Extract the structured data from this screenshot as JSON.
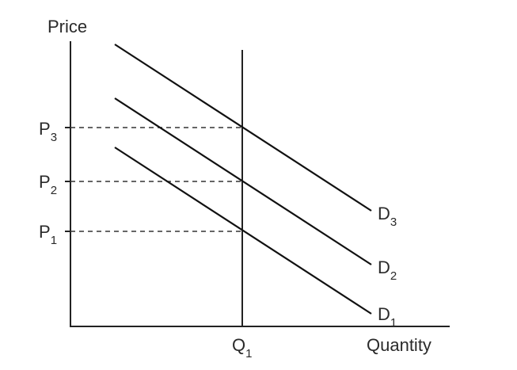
{
  "axes": {
    "y_label": "Price",
    "x_label": "Quantity"
  },
  "price_levels": [
    {
      "letter": "P",
      "sub": "1"
    },
    {
      "letter": "P",
      "sub": "2"
    },
    {
      "letter": "P",
      "sub": "3"
    }
  ],
  "quantity_level": {
    "letter": "Q",
    "sub": "1"
  },
  "demand_curves": [
    {
      "letter": "D",
      "sub": "1"
    },
    {
      "letter": "D",
      "sub": "2"
    },
    {
      "letter": "D",
      "sub": "3"
    }
  ]
}
